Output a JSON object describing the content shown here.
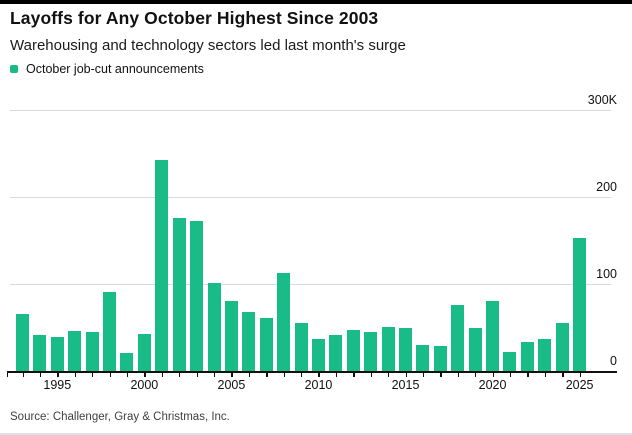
{
  "header": {
    "title": "Layoffs for Any October Highest Since 2003",
    "subtitle": "Warehousing and technology sectors led last month's surge"
  },
  "legend": {
    "label": "October job-cut announcements"
  },
  "source": "Source: Challenger, Gray & Christmas, Inc.",
  "colors": {
    "bar": "#19bb87",
    "gridline": "#dadada",
    "axis": "#111111",
    "text": "#111111",
    "source_text": "#404040",
    "top_rule": "#000000",
    "bottom_rule": "#dde3ea"
  },
  "chart_data": {
    "type": "bar",
    "title": "Layoffs for Any October Highest Since 2003",
    "subtitle": "Warehousing and technology sectors led last month's surge",
    "series_name": "October job-cut announcements",
    "unit": "thousands of announced job cuts",
    "x": [
      1993,
      1994,
      1995,
      1996,
      1997,
      1998,
      1999,
      2000,
      2001,
      2002,
      2003,
      2004,
      2005,
      2006,
      2007,
      2008,
      2009,
      2010,
      2011,
      2012,
      2013,
      2014,
      2015,
      2016,
      2017,
      2018,
      2019,
      2020,
      2021,
      2022,
      2023,
      2024,
      2025
    ],
    "values": [
      65,
      41,
      39,
      46,
      45,
      91,
      21,
      42,
      242,
      176,
      172,
      101,
      80,
      68,
      61,
      113,
      55,
      37,
      41,
      47,
      45,
      51,
      50,
      30,
      29,
      76,
      50,
      80,
      22,
      33,
      37,
      55,
      153
    ],
    "ylim": [
      0,
      300
    ],
    "yticks": [
      0,
      100,
      200,
      300
    ],
    "ytick_labels": [
      "0",
      "100",
      "200",
      "300K"
    ],
    "xtick_years": [
      1995,
      2000,
      2005,
      2010,
      2015,
      2020,
      2025
    ],
    "xtick_labels": [
      "1995",
      "2000",
      "2005",
      "2010",
      "2015",
      "2020",
      "2025"
    ],
    "grid": "horizontal",
    "legend_position": "top-left",
    "y_axis_side": "right",
    "source": "Source: Challenger, Gray & Christmas, Inc."
  }
}
